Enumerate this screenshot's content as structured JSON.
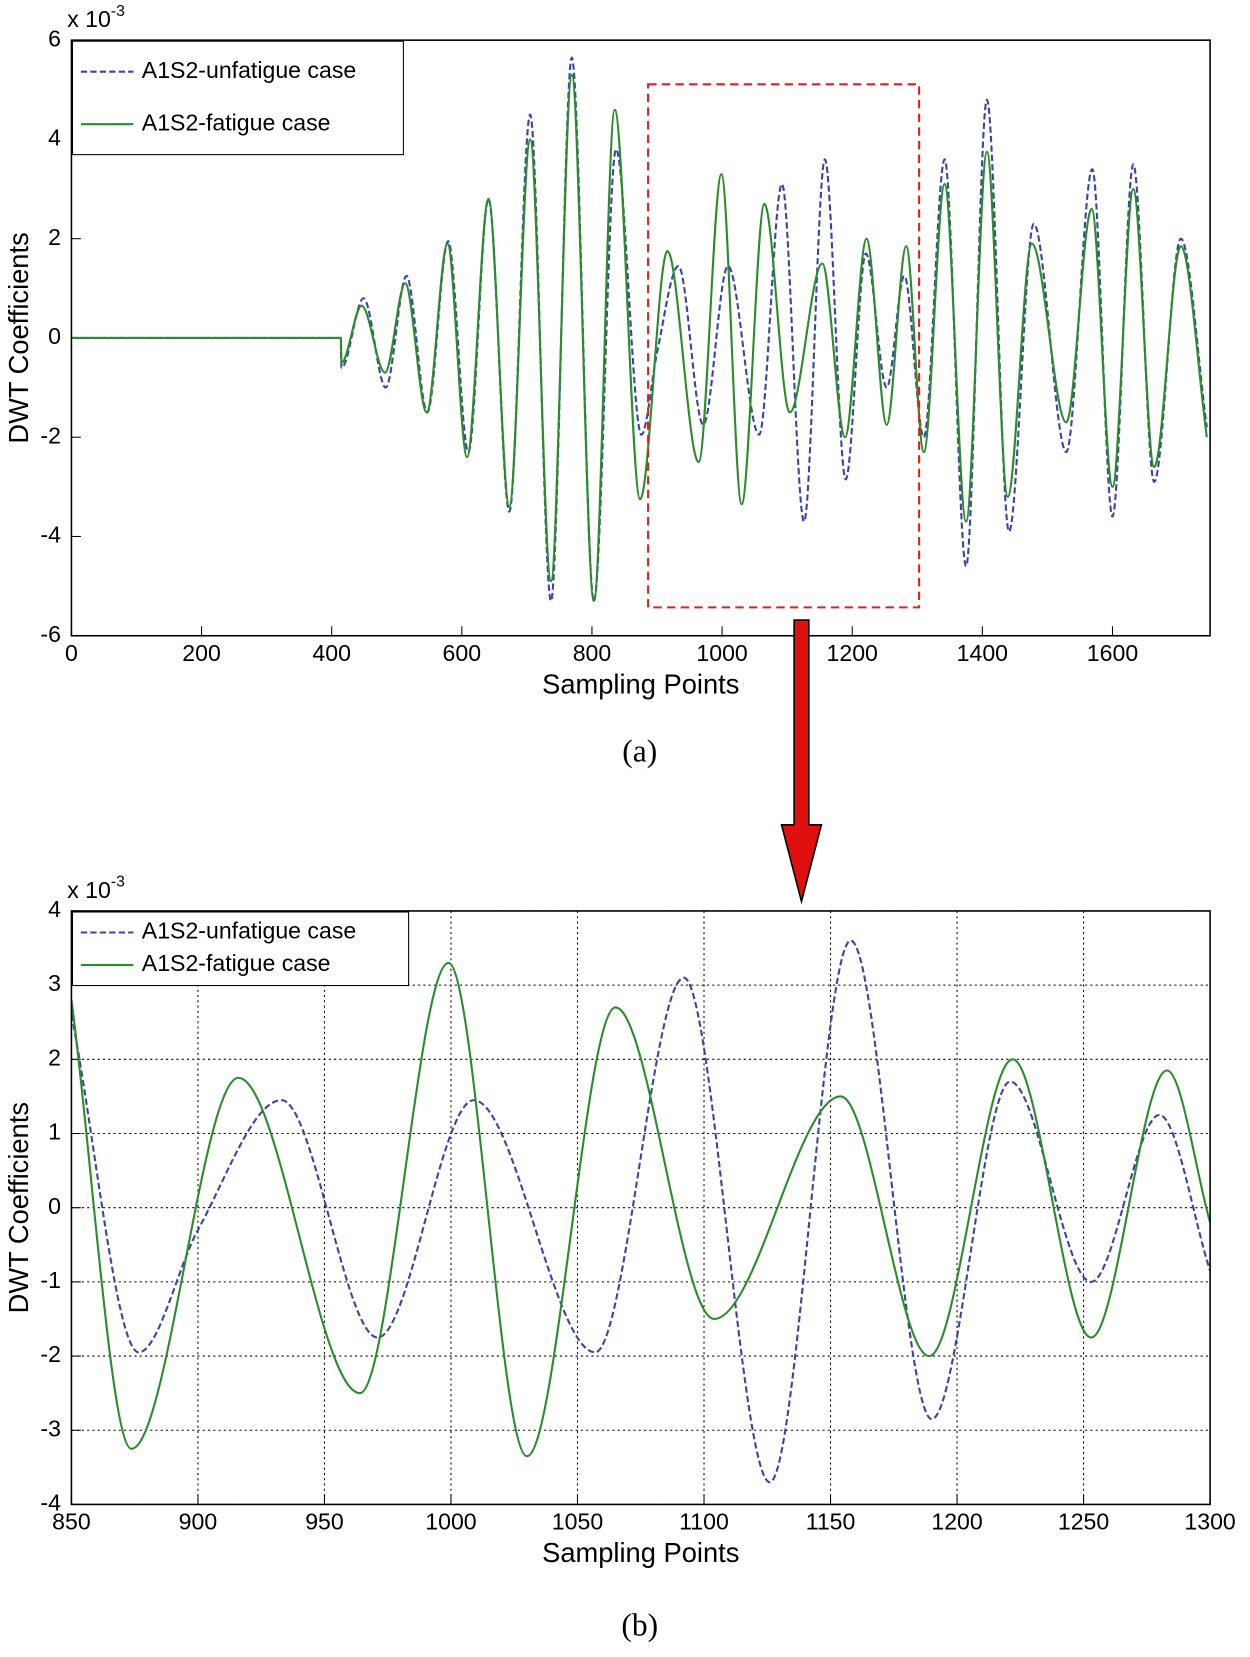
{
  "chart_data": [
    {
      "type": "line",
      "caption": "(a)",
      "x_label": "Sampling Points",
      "y_label": "DWT Coefficients",
      "y_multiplier": "x 10",
      "y_multiplier_exponent": "-3",
      "xlim": [
        0,
        1750
      ],
      "ylim": [
        -6,
        6
      ],
      "xticks": [
        0,
        200,
        400,
        600,
        800,
        1000,
        1200,
        1400,
        1600
      ],
      "yticks": [
        -6,
        -4,
        -2,
        0,
        2,
        4,
        6
      ],
      "grid": false,
      "legend": "upper left",
      "series": [
        {
          "name": "A1S2-unfatigue case",
          "color": "#3a44a8",
          "dashed": true,
          "x": [
            0,
            414,
            415,
            449,
            483,
            515,
            547,
            579,
            610,
            641,
            673,
            705,
            737,
            769,
            803,
            837,
            876,
            900,
            933,
            971,
            1009,
            1057,
            1092,
            1126,
            1158,
            1190,
            1221,
            1253,
            1280,
            1310,
            1342,
            1375,
            1407,
            1441,
            1479,
            1529,
            1569,
            1600,
            1632,
            1664,
            1705,
            1745
          ],
          "values": [
            0,
            0,
            -0.6,
            0.8,
            -1.0,
            1.25,
            -1.5,
            1.95,
            -2.3,
            2.8,
            -3.5,
            4.5,
            -5.3,
            5.65,
            -5.3,
            3.8,
            -1.95,
            -0.3,
            1.45,
            -1.75,
            1.45,
            -1.95,
            3.1,
            -3.7,
            3.6,
            -2.85,
            1.7,
            -1.0,
            1.25,
            -2.0,
            3.6,
            -4.6,
            4.8,
            -3.9,
            2.3,
            -2.3,
            3.4,
            -3.6,
            3.5,
            -2.9,
            2.0,
            -1.8
          ]
        },
        {
          "name": "A1S2-fatigue case",
          "color": "#2a8c2a",
          "dashed": false,
          "x": [
            0,
            414,
            415,
            446,
            482,
            513,
            546,
            578,
            608,
            641,
            673,
            705,
            737,
            769,
            803,
            835,
            874,
            916,
            964,
            999,
            1030,
            1065,
            1104,
            1154,
            1189,
            1222,
            1253,
            1283,
            1310,
            1342,
            1375,
            1407,
            1439,
            1476,
            1529,
            1568,
            1600,
            1632,
            1664,
            1705,
            1745
          ],
          "values": [
            0,
            0,
            -0.5,
            0.65,
            -0.7,
            1.1,
            -1.5,
            1.9,
            -2.4,
            2.8,
            -3.4,
            4.0,
            -4.9,
            5.3,
            -5.3,
            4.6,
            -3.25,
            1.75,
            -2.5,
            3.3,
            -3.35,
            2.7,
            -1.5,
            1.5,
            -2.0,
            2.0,
            -1.75,
            1.85,
            -2.3,
            3.1,
            -3.7,
            3.75,
            -3.2,
            1.9,
            -1.7,
            2.6,
            -3.0,
            3.0,
            -2.6,
            1.85,
            -2.0
          ]
        }
      ]
    },
    {
      "type": "line",
      "caption": "(b)",
      "x_label": "Sampling Points",
      "y_label": "DWT Coefficients",
      "y_multiplier": "x 10",
      "y_multiplier_exponent": "-3",
      "xlim": [
        850,
        1300
      ],
      "ylim": [
        -4,
        4
      ],
      "xticks": [
        850,
        900,
        950,
        1000,
        1050,
        1100,
        1150,
        1200,
        1250,
        1300
      ],
      "yticks": [
        -4,
        -3,
        -2,
        -1,
        0,
        1,
        2,
        3,
        4
      ],
      "grid": true,
      "legend": "upper left",
      "series": [
        {
          "name": "A1S2-unfatigue case",
          "color": "#3a44a8",
          "dashed": true,
          "x": [
            850,
            876.6,
            900,
            933,
            971,
            1009,
            1057,
            1092,
            1126,
            1158,
            1190,
            1221,
            1253,
            1280,
            1300
          ],
          "values": [
            2.6,
            -1.95,
            -0.3,
            1.45,
            -1.75,
            1.45,
            -1.95,
            3.1,
            -3.7,
            3.6,
            -2.85,
            1.7,
            -1.0,
            1.25,
            -0.85
          ]
        },
        {
          "name": "A1S2-fatigue case",
          "color": "#2a8c2a",
          "dashed": false,
          "x": [
            850,
            873.7,
            916,
            964,
            999,
            1030,
            1065,
            1104,
            1154,
            1189,
            1222,
            1253,
            1283,
            1300
          ],
          "values": [
            2.8,
            -3.25,
            1.75,
            -2.5,
            3.3,
            -3.35,
            2.7,
            -1.5,
            1.5,
            -2.0,
            2.0,
            -1.75,
            1.85,
            -0.2
          ]
        }
      ]
    }
  ]
}
